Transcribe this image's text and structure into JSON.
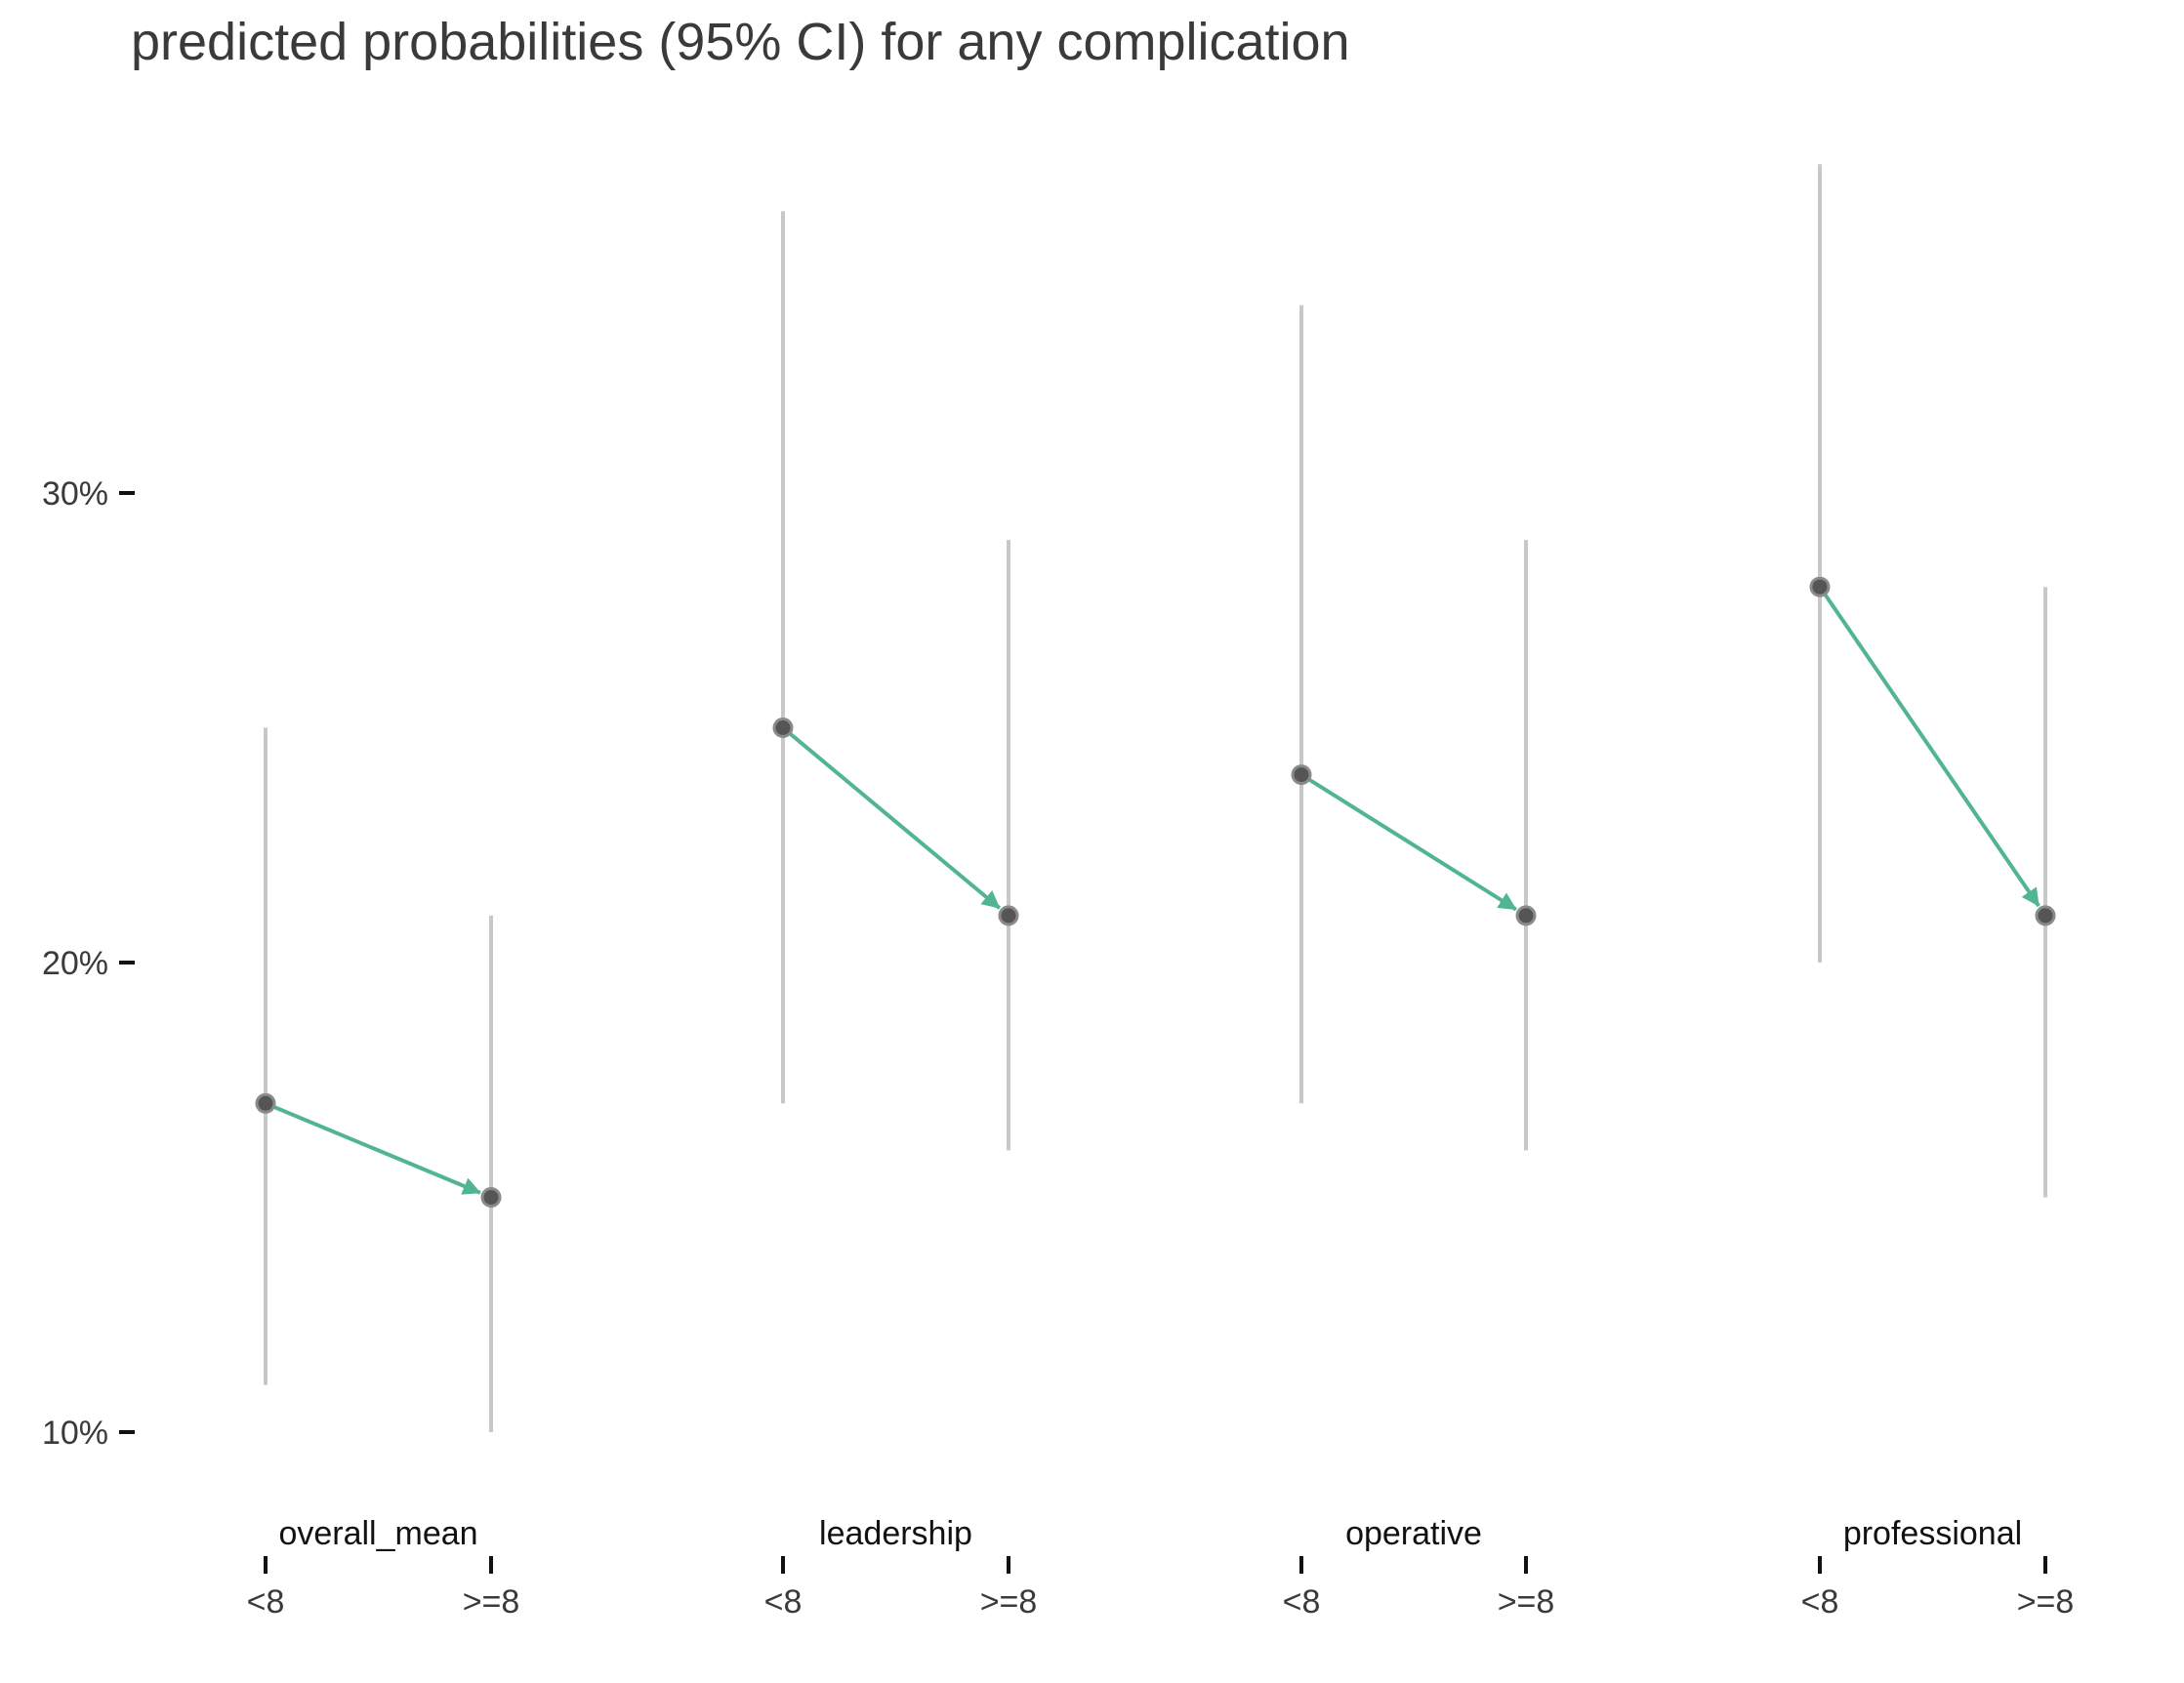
{
  "chart_data": {
    "type": "scatter",
    "title": "predicted probabilities (95% CI) for any complication",
    "xlabel": "",
    "ylabel": "",
    "y_ticks": [
      {
        "value": 10,
        "label": "10%"
      },
      {
        "value": 20,
        "label": "20%"
      },
      {
        "value": 30,
        "label": "30%"
      }
    ],
    "ylim": [
      8,
      38
    ],
    "grid": false,
    "groups": [
      {
        "name": "overall_mean",
        "points": [
          {
            "label": "<8",
            "value": 17,
            "ci": [
              11,
              25
            ]
          },
          {
            "label": ">=8",
            "value": 15,
            "ci": [
              10,
              21
            ]
          }
        ]
      },
      {
        "name": "leadership",
        "points": [
          {
            "label": "<8",
            "value": 25,
            "ci": [
              17,
              36
            ]
          },
          {
            "label": ">=8",
            "value": 21,
            "ci": [
              16,
              29
            ]
          }
        ]
      },
      {
        "name": "operative",
        "points": [
          {
            "label": "<8",
            "value": 24,
            "ci": [
              17,
              34
            ]
          },
          {
            "label": ">=8",
            "value": 21,
            "ci": [
              16,
              29
            ]
          }
        ]
      },
      {
        "name": "professional",
        "points": [
          {
            "label": "<8",
            "value": 28,
            "ci": [
              20,
              37
            ]
          },
          {
            "label": ">=8",
            "value": 21,
            "ci": [
              15,
              28
            ]
          }
        ]
      }
    ],
    "colors": {
      "arrow": "#52b592",
      "point": "#555555",
      "ci": "#c8c8c8",
      "axis": "#111111"
    }
  }
}
